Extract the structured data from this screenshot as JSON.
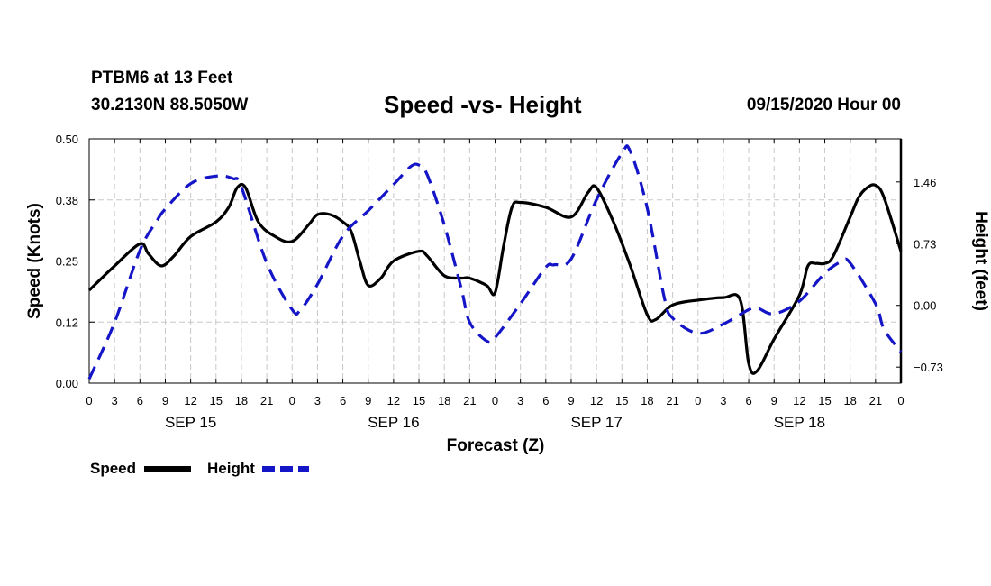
{
  "header": {
    "station_line": "PTBM6 at 13 Feet",
    "coords_line": "30.2130N 88.5050W",
    "title": "Speed -vs- Height",
    "run_time": "09/15/2020 Hour 00"
  },
  "legend": {
    "speed_label": "Speed",
    "height_label": "Height"
  },
  "colors": {
    "speed": "#000000",
    "height": "#1515c8",
    "grid": "#c8c8c8"
  },
  "chart_data": {
    "type": "line",
    "title": "Speed -vs- Height",
    "xlabel": "Forecast (Z)",
    "ylabel_left": "Speed (Knots)",
    "ylabel_right": "Height (feet)",
    "x_range": [
      0,
      96
    ],
    "x_ticks": [
      0,
      3,
      6,
      9,
      12,
      15,
      18,
      21,
      24,
      27,
      30,
      33,
      36,
      39,
      42,
      45,
      48,
      51,
      54,
      57,
      60,
      63,
      66,
      69,
      72,
      75,
      78,
      81,
      84,
      87,
      90,
      93,
      96
    ],
    "x_tick_labels": [
      "0",
      "3",
      "6",
      "9",
      "12",
      "15",
      "18",
      "21",
      "0",
      "3",
      "6",
      "9",
      "12",
      "15",
      "18",
      "21",
      "0",
      "3",
      "6",
      "9",
      "12",
      "15",
      "18",
      "21",
      "0",
      "3",
      "6",
      "9",
      "12",
      "15",
      "18",
      "21",
      "0"
    ],
    "day_labels": [
      {
        "x": 12,
        "label": "SEP 15"
      },
      {
        "x": 36,
        "label": "SEP 16"
      },
      {
        "x": 60,
        "label": "SEP 17"
      },
      {
        "x": 84,
        "label": "SEP 18"
      }
    ],
    "left_axis": {
      "range": [
        0,
        0.5
      ],
      "ticks": [
        0.0,
        0.125,
        0.25,
        0.375,
        0.5
      ],
      "tick_labels": [
        "0.00",
        "0.12",
        "0.25",
        "0.38",
        "0.50"
      ]
    },
    "right_axis": {
      "range": [
        -0.92,
        1.97
      ],
      "ticks": [
        -0.73,
        0.0,
        0.73,
        1.46
      ],
      "tick_labels": [
        "−0.73",
        "0.00",
        "0.73",
        "1.46"
      ]
    },
    "series": [
      {
        "name": "Speed",
        "axis": "left",
        "style": "solid",
        "points": [
          [
            0,
            0.19
          ],
          [
            3,
            0.24
          ],
          [
            6,
            0.285
          ],
          [
            7,
            0.265
          ],
          [
            8.5,
            0.24
          ],
          [
            10,
            0.26
          ],
          [
            12,
            0.3
          ],
          [
            15,
            0.33
          ],
          [
            16.5,
            0.36
          ],
          [
            17.5,
            0.4
          ],
          [
            18.5,
            0.4
          ],
          [
            20,
            0.33
          ],
          [
            22,
            0.3
          ],
          [
            24,
            0.29
          ],
          [
            26,
            0.325
          ],
          [
            27,
            0.345
          ],
          [
            28.5,
            0.345
          ],
          [
            30,
            0.33
          ],
          [
            31,
            0.31
          ],
          [
            32,
            0.25
          ],
          [
            33,
            0.2
          ],
          [
            34.5,
            0.215
          ],
          [
            36,
            0.25
          ],
          [
            39,
            0.27
          ],
          [
            40,
            0.26
          ],
          [
            42,
            0.22
          ],
          [
            44,
            0.215
          ],
          [
            45,
            0.215
          ],
          [
            47,
            0.2
          ],
          [
            48,
            0.185
          ],
          [
            49,
            0.28
          ],
          [
            50,
            0.36
          ],
          [
            51,
            0.37
          ],
          [
            54,
            0.36
          ],
          [
            57,
            0.34
          ],
          [
            59,
            0.39
          ],
          [
            60,
            0.4
          ],
          [
            62,
            0.33
          ],
          [
            64,
            0.24
          ],
          [
            66,
            0.14
          ],
          [
            67,
            0.13
          ],
          [
            69,
            0.16
          ],
          [
            72,
            0.17
          ],
          [
            75,
            0.175
          ],
          [
            77,
            0.17
          ],
          [
            78,
            0.04
          ],
          [
            79,
            0.025
          ],
          [
            81,
            0.09
          ],
          [
            84,
            0.18
          ],
          [
            85,
            0.24
          ],
          [
            86,
            0.245
          ],
          [
            87,
            0.245
          ],
          [
            88,
            0.26
          ],
          [
            90,
            0.34
          ],
          [
            91,
            0.38
          ],
          [
            92,
            0.4
          ],
          [
            93,
            0.405
          ],
          [
            94,
            0.38
          ],
          [
            96,
            0.27
          ]
        ]
      },
      {
        "name": "Height",
        "axis": "right",
        "style": "dashed",
        "points": [
          [
            0,
            -0.87
          ],
          [
            3,
            -0.2
          ],
          [
            6,
            0.65
          ],
          [
            8,
            1.0
          ],
          [
            9,
            1.14
          ],
          [
            12,
            1.44
          ],
          [
            15,
            1.53
          ],
          [
            17,
            1.5
          ],
          [
            18,
            1.4
          ],
          [
            21,
            0.5
          ],
          [
            24,
            -0.05
          ],
          [
            25,
            -0.05
          ],
          [
            27,
            0.25
          ],
          [
            30,
            0.82
          ],
          [
            33,
            1.12
          ],
          [
            36,
            1.43
          ],
          [
            38,
            1.64
          ],
          [
            39,
            1.66
          ],
          [
            40,
            1.54
          ],
          [
            42,
            0.95
          ],
          [
            44,
            0.2
          ],
          [
            45,
            -0.2
          ],
          [
            47,
            -0.42
          ],
          [
            48,
            -0.38
          ],
          [
            51,
            0.02
          ],
          [
            54,
            0.45
          ],
          [
            55,
            0.48
          ],
          [
            57,
            0.55
          ],
          [
            60,
            1.25
          ],
          [
            63,
            1.8
          ],
          [
            64,
            1.82
          ],
          [
            66,
            1.15
          ],
          [
            68,
            0.1
          ],
          [
            69,
            -0.15
          ],
          [
            72,
            -0.33
          ],
          [
            75,
            -0.22
          ],
          [
            78,
            -0.05
          ],
          [
            79,
            -0.03
          ],
          [
            81,
            -0.1
          ],
          [
            84,
            0.05
          ],
          [
            87,
            0.38
          ],
          [
            89,
            0.52
          ],
          [
            90,
            0.5
          ],
          [
            93,
            0.02
          ],
          [
            94,
            -0.28
          ],
          [
            96,
            -0.55
          ]
        ]
      }
    ]
  }
}
